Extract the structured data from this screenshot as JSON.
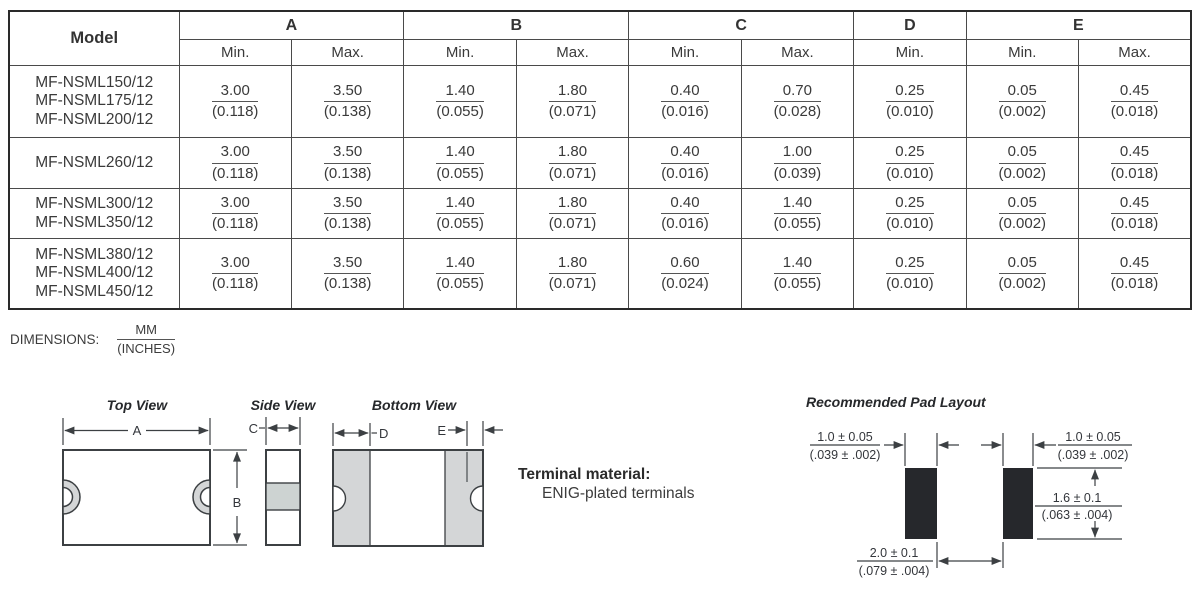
{
  "table": {
    "model_header": "Model",
    "groups": [
      {
        "label": "A",
        "cols": [
          "Min.",
          "Max."
        ]
      },
      {
        "label": "B",
        "cols": [
          "Min.",
          "Max."
        ]
      },
      {
        "label": "C",
        "cols": [
          "Min.",
          "Max."
        ]
      },
      {
        "label": "D",
        "cols": [
          "Min."
        ]
      },
      {
        "label": "E",
        "cols": [
          "Min.",
          "Max."
        ]
      }
    ],
    "rows": [
      {
        "models": [
          "MF-NSML150/12",
          "MF-NSML175/12",
          "MF-NSML200/12"
        ],
        "values": [
          {
            "mm": "3.00",
            "in": "(0.118)"
          },
          {
            "mm": "3.50",
            "in": "(0.138)"
          },
          {
            "mm": "1.40",
            "in": "(0.055)"
          },
          {
            "mm": "1.80",
            "in": "(0.071)"
          },
          {
            "mm": "0.40",
            "in": "(0.016)"
          },
          {
            "mm": "0.70",
            "in": "(0.028)"
          },
          {
            "mm": "0.25",
            "in": "(0.010)"
          },
          {
            "mm": "0.05",
            "in": "(0.002)"
          },
          {
            "mm": "0.45",
            "in": "(0.018)"
          }
        ]
      },
      {
        "models": [
          "MF-NSML260/12"
        ],
        "values": [
          {
            "mm": "3.00",
            "in": "(0.118)"
          },
          {
            "mm": "3.50",
            "in": "(0.138)"
          },
          {
            "mm": "1.40",
            "in": "(0.055)"
          },
          {
            "mm": "1.80",
            "in": "(0.071)"
          },
          {
            "mm": "0.40",
            "in": "(0.016)"
          },
          {
            "mm": "1.00",
            "in": "(0.039)"
          },
          {
            "mm": "0.25",
            "in": "(0.010)"
          },
          {
            "mm": "0.05",
            "in": "(0.002)"
          },
          {
            "mm": "0.45",
            "in": "(0.018)"
          }
        ]
      },
      {
        "models": [
          "MF-NSML300/12",
          "MF-NSML350/12"
        ],
        "values": [
          {
            "mm": "3.00",
            "in": "(0.118)"
          },
          {
            "mm": "3.50",
            "in": "(0.138)"
          },
          {
            "mm": "1.40",
            "in": "(0.055)"
          },
          {
            "mm": "1.80",
            "in": "(0.071)"
          },
          {
            "mm": "0.40",
            "in": "(0.016)"
          },
          {
            "mm": "1.40",
            "in": "(0.055)"
          },
          {
            "mm": "0.25",
            "in": "(0.010)"
          },
          {
            "mm": "0.05",
            "in": "(0.002)"
          },
          {
            "mm": "0.45",
            "in": "(0.018)"
          }
        ]
      },
      {
        "models": [
          "MF-NSML380/12",
          "MF-NSML400/12",
          "MF-NSML450/12"
        ],
        "values": [
          {
            "mm": "3.00",
            "in": "(0.118)"
          },
          {
            "mm": "3.50",
            "in": "(0.138)"
          },
          {
            "mm": "1.40",
            "in": "(0.055)"
          },
          {
            "mm": "1.80",
            "in": "(0.071)"
          },
          {
            "mm": "0.60",
            "in": "(0.024)"
          },
          {
            "mm": "1.40",
            "in": "(0.055)"
          },
          {
            "mm": "0.25",
            "in": "(0.010)"
          },
          {
            "mm": "0.05",
            "in": "(0.002)"
          },
          {
            "mm": "0.45",
            "in": "(0.018)"
          }
        ]
      }
    ]
  },
  "dimensions_note": {
    "label": "DIMENSIONS:",
    "numerator": "MM",
    "denominator": "(INCHES)"
  },
  "figures": {
    "top_view": {
      "title": "Top View",
      "dim_a": "A",
      "dim_b": "B"
    },
    "side_view": {
      "title": "Side View",
      "dim_c": "C"
    },
    "bottom_view": {
      "title": "Bottom View",
      "dim_d": "D",
      "dim_e": "E"
    },
    "terminal": {
      "label": "Terminal material:",
      "value": "ENIG-plated terminals"
    },
    "pad_layout": {
      "title": "Recommended Pad Layout",
      "pad_width_left": {
        "mm": "1.0 ± 0.05",
        "in": "(.039 ± .002)"
      },
      "pad_width_right": {
        "mm": "1.0 ± 0.05",
        "in": "(.039 ± .002)"
      },
      "pad_height": {
        "mm": "1.6 ± 0.1",
        "in": "(.063 ± .004)"
      },
      "pad_gap": {
        "mm": "2.0 ± 0.1",
        "in": "(.079 ± .004)"
      }
    }
  }
}
